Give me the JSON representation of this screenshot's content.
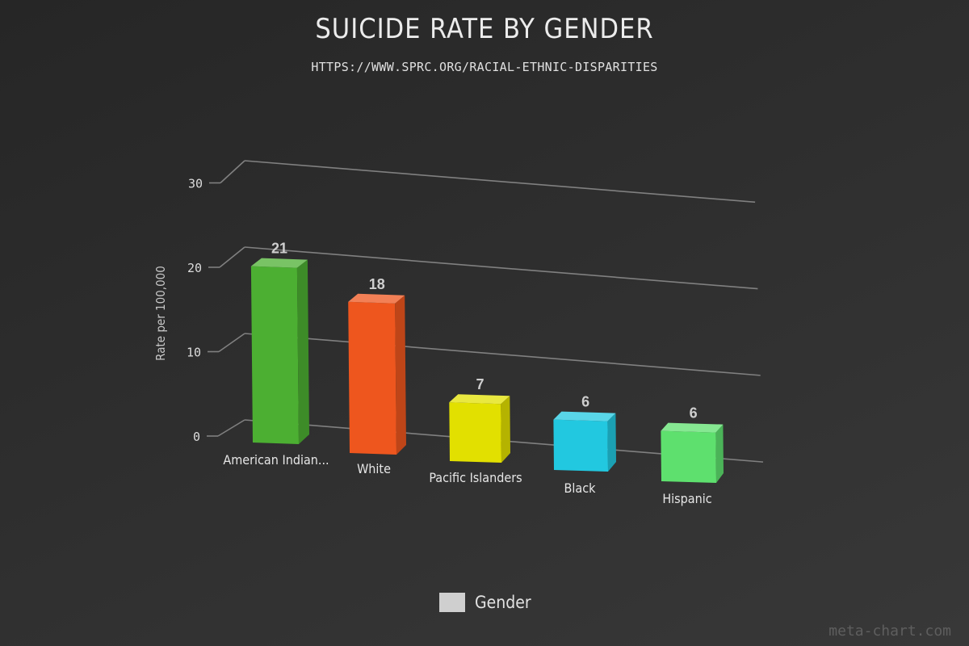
{
  "header": {
    "title": "SUICIDE RATE BY GENDER",
    "subtitle": "HTTPS://WWW.SPRC.ORG/RACIAL-ETHNIC-DISPARITIES"
  },
  "legend": {
    "label": "Gender",
    "color": "#cfcfcf"
  },
  "credit": "meta-chart.com",
  "chart_data": {
    "type": "bar",
    "title": "SUICIDE RATE BY GENDER",
    "subtitle": "HTTPS://WWW.SPRC.ORG/RACIAL-ETHNIC-DISPARITIES",
    "xlabel": "",
    "ylabel": "Rate per 100,000",
    "ylim": [
      0,
      30
    ],
    "yticks": [
      0,
      10,
      20,
      30
    ],
    "categories": [
      "American Indian...",
      "White",
      "Pacific Islanders",
      "Black",
      "Hispanic"
    ],
    "series": [
      {
        "name": "Gender",
        "values": [
          21,
          18,
          7,
          6,
          6
        ]
      }
    ],
    "colors": [
      "#4caf32",
      "#ee561e",
      "#e2e000",
      "#22c8e0",
      "#5ee06e"
    ],
    "data_labels": [
      "21",
      "18",
      "7",
      "6",
      "6"
    ],
    "grid": true,
    "legend_position": "bottom"
  }
}
